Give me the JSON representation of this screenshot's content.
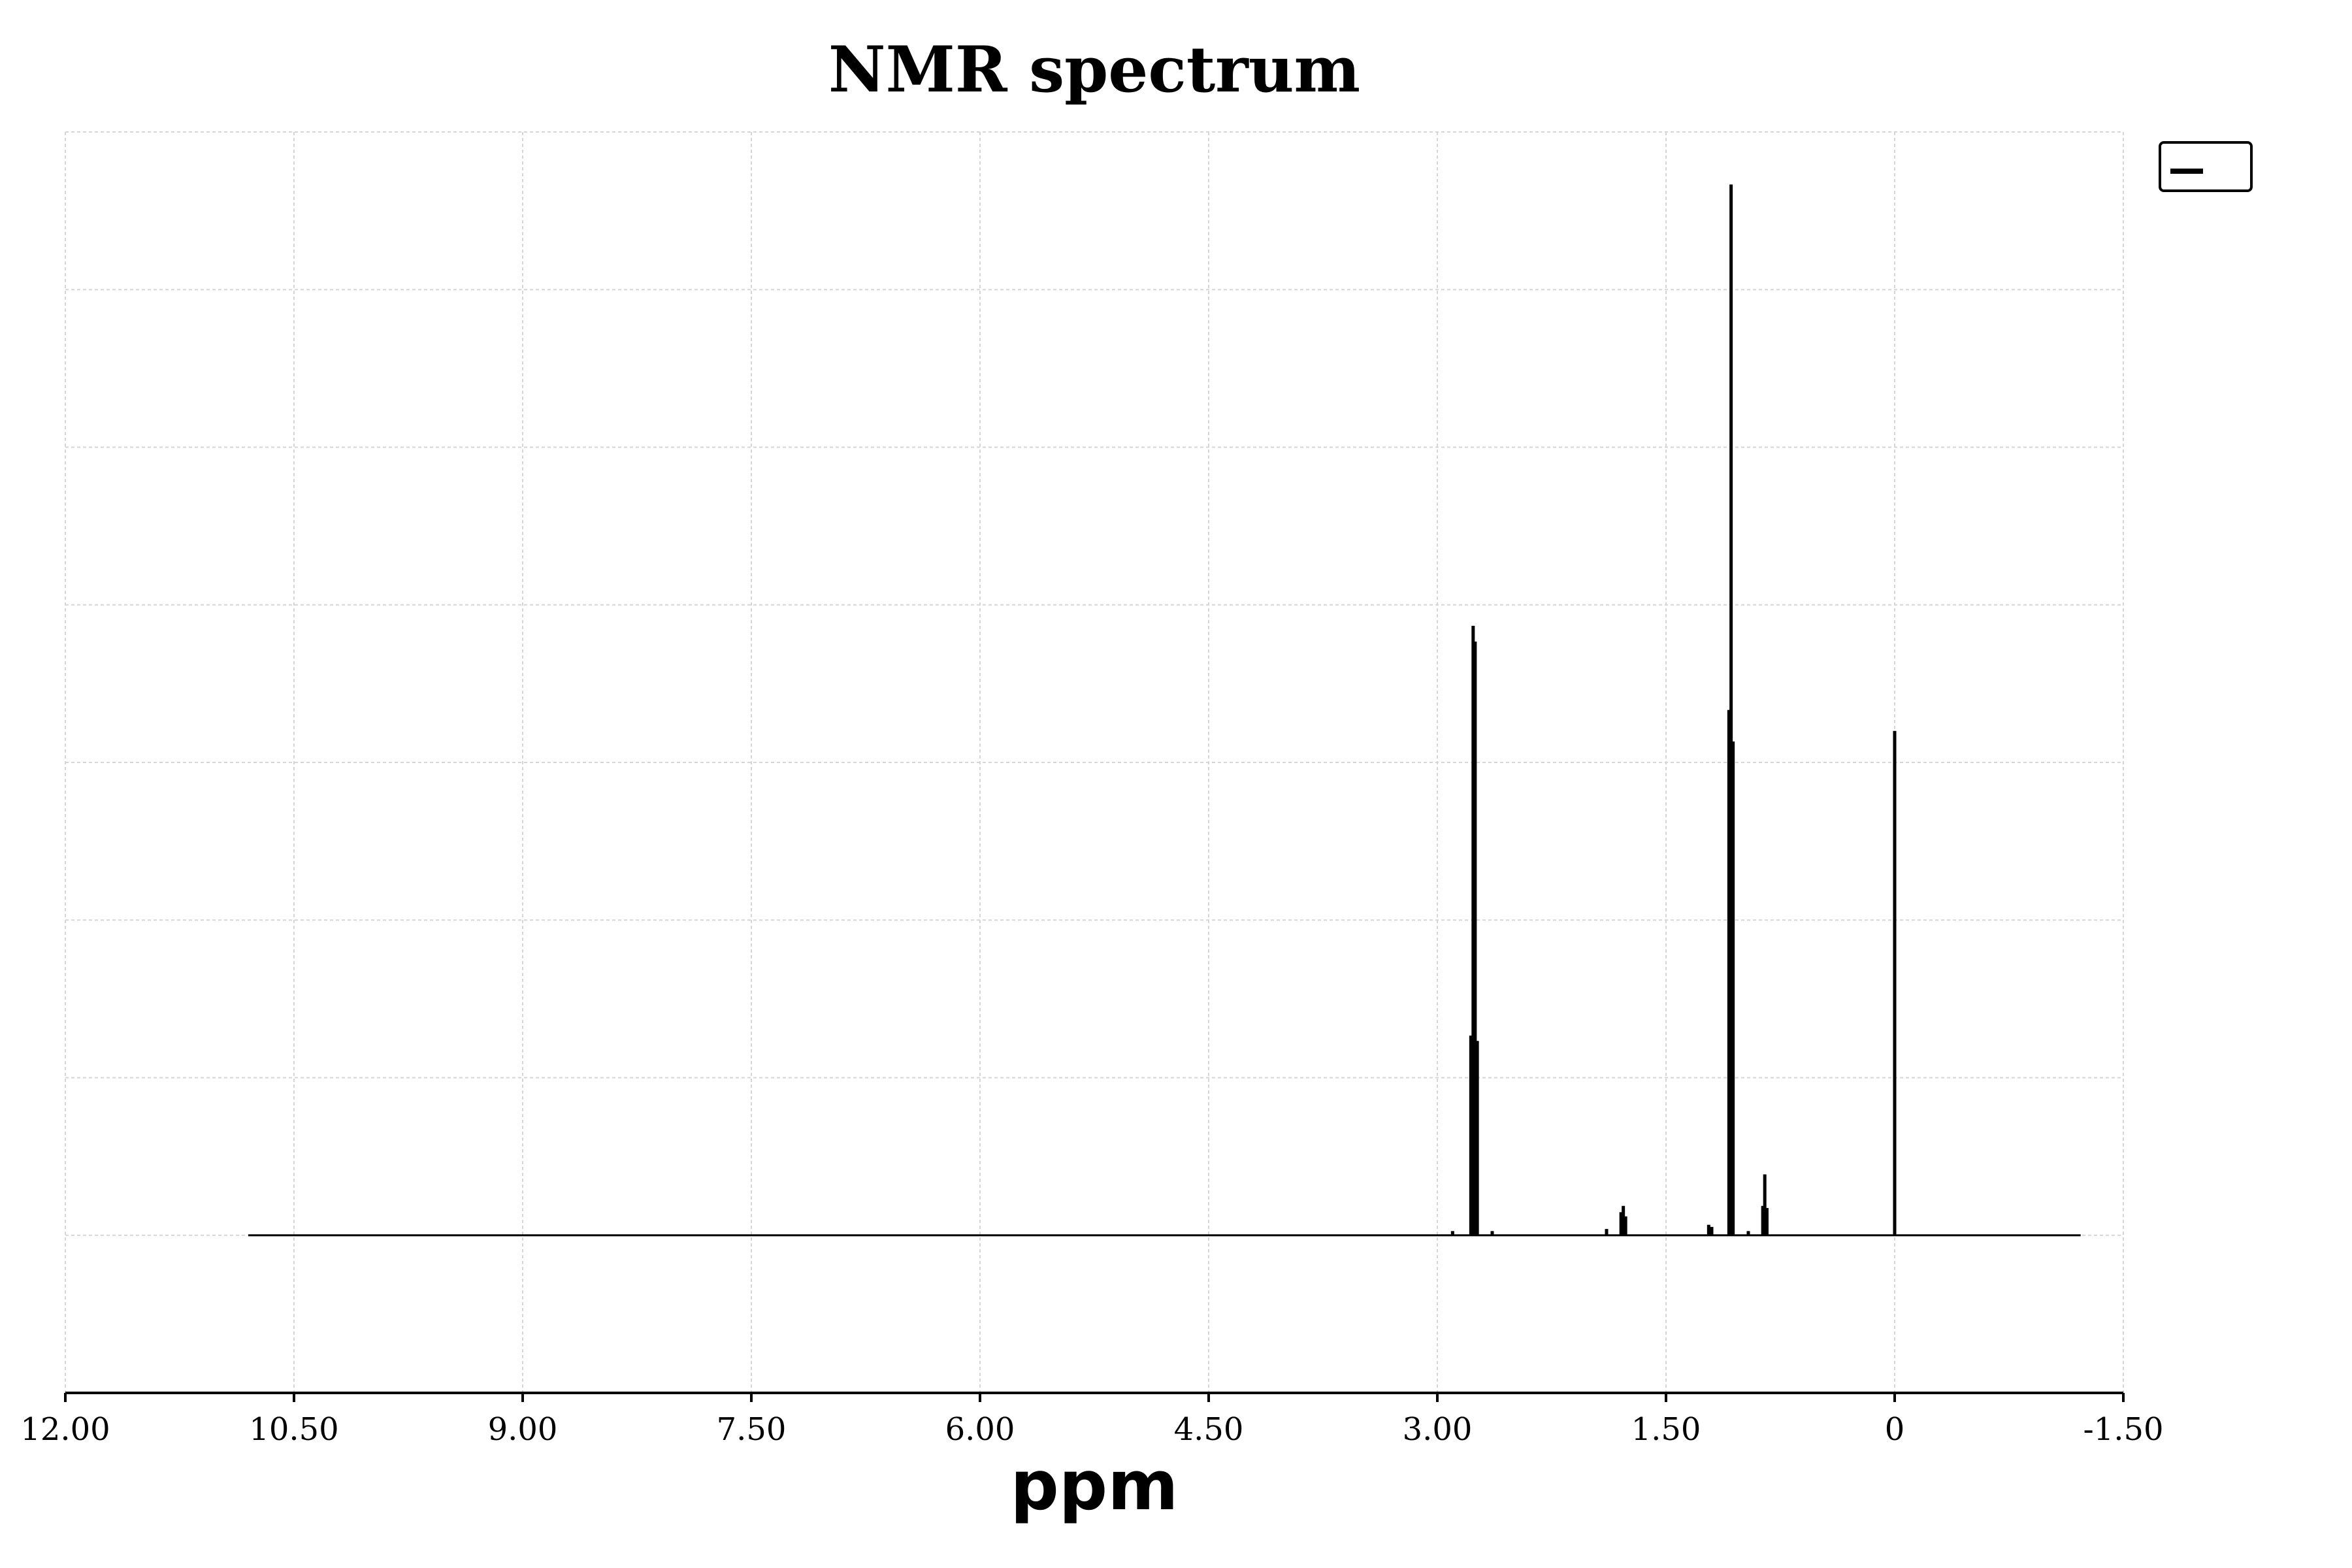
{
  "chart_data": {
    "type": "line",
    "title": "NMR spectrum",
    "xlabel": "ppm",
    "ylabel": "",
    "x_reversed": true,
    "xlim": [
      12.0,
      -1.5
    ],
    "ylim": [
      -0.15,
      1.05
    ],
    "x_ticks": [
      "12.00",
      "10.50",
      "9.00",
      "7.50",
      "6.00",
      "4.50",
      "3.00",
      "1.50",
      "0",
      "-1.50"
    ],
    "x_tick_values": [
      12.0,
      10.5,
      9.0,
      7.5,
      6.0,
      4.5,
      3.0,
      1.5,
      0.0,
      -1.5
    ],
    "y_gridlines": [
      0.0,
      0.15,
      0.3,
      0.45,
      0.6,
      0.75,
      0.9
    ],
    "grid": true,
    "legend": {
      "placement": "top-right",
      "entries": [
        ""
      ]
    },
    "line_color": "#000000",
    "baseline_range": [
      10.8,
      -1.22
    ],
    "peaks": [
      {
        "ppm": 2.9,
        "height": 0.004
      },
      {
        "ppm": 2.78,
        "height": 0.19
      },
      {
        "ppm": 2.765,
        "height": 0.58
      },
      {
        "ppm": 2.752,
        "height": 0.565
      },
      {
        "ppm": 2.738,
        "height": 0.185
      },
      {
        "ppm": 2.64,
        "height": 0.004
      },
      {
        "ppm": 1.89,
        "height": 0.006
      },
      {
        "ppm": 1.795,
        "height": 0.022
      },
      {
        "ppm": 1.78,
        "height": 0.028
      },
      {
        "ppm": 1.765,
        "height": 0.018
      },
      {
        "ppm": 1.22,
        "height": 0.01
      },
      {
        "ppm": 1.2,
        "height": 0.008
      },
      {
        "ppm": 1.087,
        "height": 0.5
      },
      {
        "ppm": 1.073,
        "height": 1.0
      },
      {
        "ppm": 1.06,
        "height": 0.47
      },
      {
        "ppm": 0.96,
        "height": 0.004
      },
      {
        "ppm": 0.865,
        "height": 0.028
      },
      {
        "ppm": 0.852,
        "height": 0.058
      },
      {
        "ppm": 0.838,
        "height": 0.026
      },
      {
        "ppm": 0.0,
        "height": 0.48
      }
    ]
  }
}
